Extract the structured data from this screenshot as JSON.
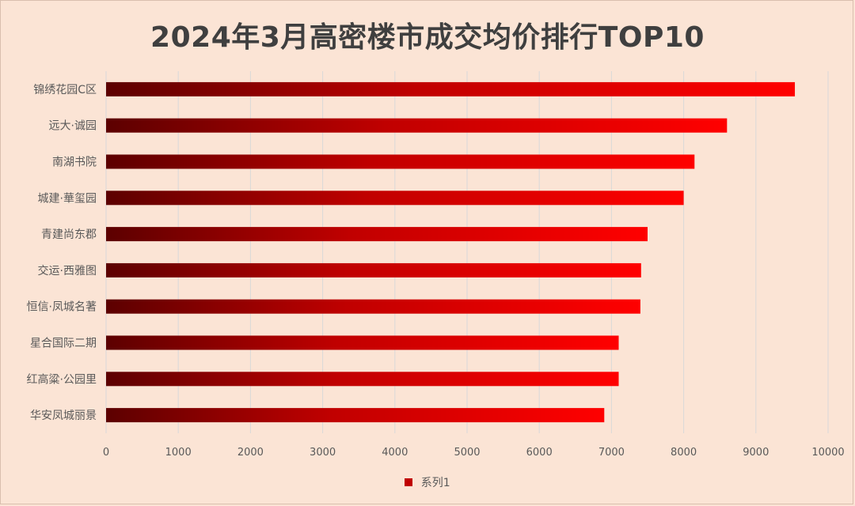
{
  "chart_data": {
    "type": "bar",
    "orientation": "horizontal",
    "title": "2024年3月高密楼市成交均价排行TOP10",
    "categories": [
      "锦绣花园C区",
      "远大·诚园",
      "南湖书院",
      "城建·華玺园",
      "青建尚东郡",
      "交运·西雅图",
      "恒信·凤城名著",
      "星合国际二期",
      "红高粱·公园里",
      "华安凤城丽景"
    ],
    "series": [
      {
        "name": "系列1",
        "values": [
          9540,
          8600,
          8150,
          8000,
          7500,
          7410,
          7400,
          7100,
          7100,
          6900
        ]
      }
    ],
    "xlim": [
      0,
      10000
    ],
    "xticks": [
      "0",
      "1000",
      "2000",
      "3000",
      "4000",
      "5000",
      "6000",
      "7000",
      "8000",
      "9000",
      "10000"
    ],
    "grid": true,
    "legend_position": "bottom",
    "colors": {
      "bar_start": "#5c0000",
      "bar_mid": "#c00000",
      "bar_end": "#ff0000",
      "grid": "#d9d9d9",
      "axis_text": "#595959",
      "background": "#fbe4d5"
    }
  }
}
